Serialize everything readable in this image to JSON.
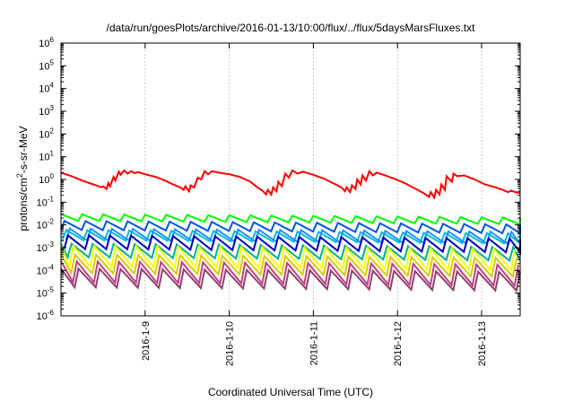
{
  "chart_data": {
    "type": "line",
    "title": "/data/run/goesPlots/archive/2016-01-13/10:00/flux/../flux/5daysMarsFluxes.txt",
    "xlabel": "Coordinated Universal Time (UTC)",
    "ylabel": {
      "base": "protons/cm",
      "sup": "2",
      "rest": "-s-sr-MeV"
    },
    "y_scale": "log",
    "ylim": [
      1e-06,
      1000000.0
    ],
    "xlim": [
      "2016-01-08 00:00",
      "2016-01-13 11:00"
    ],
    "x_ticks": [
      "2016-1-9",
      "2016-1-10",
      "2016-1-11",
      "2016-1-12",
      "2016-1-13"
    ],
    "y_ticks": [
      {
        "base": "10",
        "exp": "-6"
      },
      {
        "base": "10",
        "exp": "-5"
      },
      {
        "base": "10",
        "exp": "-4"
      },
      {
        "base": "10",
        "exp": "-3"
      },
      {
        "base": "10",
        "exp": "-2"
      },
      {
        "base": "10",
        "exp": "-1"
      },
      {
        "base": "10",
        "exp": "0"
      },
      {
        "base": "10",
        "exp": "1"
      },
      {
        "base": "10",
        "exp": "2"
      },
      {
        "base": "10",
        "exp": "3"
      },
      {
        "base": "10",
        "exp": "4"
      },
      {
        "base": "10",
        "exp": "5"
      },
      {
        "base": "10",
        "exp": "6"
      }
    ],
    "grid": {
      "vertical": true,
      "horizontal": false
    },
    "series": [
      {
        "color": "#ff0000",
        "x": [
          "2016-01-08 00:00",
          "2016-01-08 03:00",
          "2016-01-08 06:00",
          "2016-01-08 08:00",
          "2016-01-08 10:00",
          "2016-01-08 11:30",
          "2016-01-08 12:00",
          "2016-01-08 13:00",
          "2016-01-08 13:30",
          "2016-01-08 14:00",
          "2016-01-08 15:00",
          "2016-01-08 15:30",
          "2016-01-08 16:30",
          "2016-01-08 17:00",
          "2016-01-08 18:00",
          "2016-01-08 19:00",
          "2016-01-08 20:00",
          "2016-01-08 21:00",
          "2016-01-08 22:00",
          "2016-01-09 00:00",
          "2016-01-09 03:00",
          "2016-01-09 06:00",
          "2016-01-09 08:00",
          "2016-01-09 10:00",
          "2016-01-09 11:00",
          "2016-01-09 11:30",
          "2016-01-09 12:30",
          "2016-01-09 13:00",
          "2016-01-09 14:00",
          "2016-01-09 15:00",
          "2016-01-09 16:00",
          "2016-01-09 17:00",
          "2016-01-09 18:00",
          "2016-01-09 19:00",
          "2016-01-09 21:00",
          "2016-01-10 00:00",
          "2016-01-10 03:00",
          "2016-01-10 06:00",
          "2016-01-10 08:00",
          "2016-01-10 09:30",
          "2016-01-10 10:30",
          "2016-01-10 11:00",
          "2016-01-10 12:00",
          "2016-01-10 12:30",
          "2016-01-10 13:30",
          "2016-01-10 14:00",
          "2016-01-10 15:00",
          "2016-01-10 16:00",
          "2016-01-10 17:00",
          "2016-01-10 18:00",
          "2016-01-10 19:30",
          "2016-01-10 21:00",
          "2016-01-11 00:00",
          "2016-01-11 03:00",
          "2016-01-11 05:30",
          "2016-01-11 08:00",
          "2016-01-11 09:00",
          "2016-01-11 09:30",
          "2016-01-11 10:30",
          "2016-01-11 11:00",
          "2016-01-11 12:00",
          "2016-01-11 12:30",
          "2016-01-11 13:30",
          "2016-01-11 14:00",
          "2016-01-11 15:00",
          "2016-01-11 16:00",
          "2016-01-11 17:00",
          "2016-01-11 18:00",
          "2016-01-11 20:00",
          "2016-01-11 23:00",
          "2016-01-12 02:00",
          "2016-01-12 05:00",
          "2016-01-12 07:30",
          "2016-01-12 09:00",
          "2016-01-12 09:30",
          "2016-01-12 10:30",
          "2016-01-12 11:00",
          "2016-01-12 12:00",
          "2016-01-12 12:30",
          "2016-01-12 13:30",
          "2016-01-12 14:00",
          "2016-01-12 15:30",
          "2016-01-12 16:00",
          "2016-01-12 17:00",
          "2016-01-12 19:00",
          "2016-01-12 22:00",
          "2016-01-13 01:00",
          "2016-01-13 04:00",
          "2016-01-13 06:00",
          "2016-01-13 07:30",
          "2016-01-13 08:30",
          "2016-01-13 09:30",
          "2016-01-13 11:00"
        ],
        "y": [
          2.0,
          1.4,
          0.9,
          0.7,
          0.55,
          0.45,
          0.5,
          0.38,
          0.7,
          0.5,
          1.3,
          0.9,
          2.2,
          1.6,
          2.5,
          1.8,
          2.3,
          1.9,
          2.1,
          1.7,
          1.3,
          0.85,
          0.6,
          0.45,
          0.35,
          0.5,
          0.3,
          0.55,
          0.45,
          1.2,
          1.0,
          2.3,
          1.7,
          2.3,
          2.0,
          1.7,
          1.3,
          0.8,
          0.45,
          0.32,
          0.22,
          0.35,
          0.22,
          0.45,
          0.3,
          0.8,
          0.5,
          1.8,
          1.2,
          2.5,
          1.8,
          2.2,
          1.6,
          1.1,
          0.7,
          0.45,
          0.3,
          0.45,
          0.28,
          0.55,
          0.38,
          1.0,
          0.6,
          1.5,
          0.9,
          2.3,
          1.5,
          2.0,
          1.6,
          1.1,
          0.7,
          0.4,
          0.25,
          0.17,
          0.28,
          0.16,
          0.35,
          0.22,
          0.6,
          0.35,
          1.4,
          0.8,
          1.8,
          1.4,
          1.5,
          1.0,
          0.6,
          0.45,
          0.35,
          0.28,
          0.32,
          0.28,
          0.25
        ]
      },
      {
        "color": "#00ff00",
        "base": 0.03,
        "depth": 0.5,
        "trend": 0.7,
        "period_h": 6,
        "phase_h": 0
      },
      {
        "color": "#0055dd",
        "base": 0.015,
        "depth": 0.4,
        "trend": 0.7,
        "period_h": 6,
        "phase_h": 1
      },
      {
        "color": "#00bbdd",
        "base": 0.006,
        "depth": 0.35,
        "trend": 0.7,
        "period_h": 6,
        "phase_h": 1.5
      },
      {
        "color": "#2090ff",
        "base": 0.007,
        "depth": 0.3,
        "trend": 0.7,
        "period_h": 6,
        "phase_h": 2.5
      },
      {
        "color": "#0000bb",
        "base": 0.0035,
        "depth": 0.25,
        "trend": 0.7,
        "period_h": 6,
        "phase_h": 2
      },
      {
        "color": "#00b090",
        "base": 0.0015,
        "depth": 0.25,
        "trend": 0.7,
        "period_h": 6,
        "phase_h": 3
      },
      {
        "color": "#ffff00",
        "base": 0.0012,
        "depth": 0.12,
        "trend": 0.7,
        "period_h": 6,
        "phase_h": 3.5
      },
      {
        "color": "#d8cc00",
        "base": 0.0005,
        "depth": 0.15,
        "trend": 0.7,
        "period_h": 6,
        "phase_h": 4
      },
      {
        "color": "#c04080",
        "base": 0.00025,
        "depth": 0.12,
        "trend": 0.7,
        "period_h": 6,
        "phase_h": 4.5
      },
      {
        "color": "#904070",
        "base": 0.00012,
        "depth": 0.15,
        "trend": 0.7,
        "period_h": 6,
        "phase_h": 5
      }
    ]
  }
}
